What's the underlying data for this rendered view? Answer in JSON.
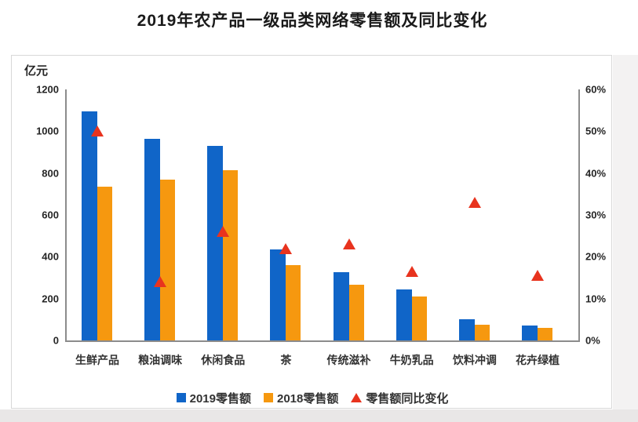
{
  "page": {
    "background_accents": {
      "right_strip": "#f3f2f2",
      "bottom_strip": "#e9e7e7",
      "panel_border": "#d8d8d8"
    }
  },
  "chart_data": {
    "type": "bar",
    "subtype": "grouped bars with right-axis scatter (triangle) markers",
    "title": "2019年农产品一级品类网络零售额及同比变化",
    "categories": [
      "生鲜产品",
      "粮油调味",
      "休闲食品",
      "茶",
      "传统滋补",
      "牛奶乳品",
      "饮料冲调",
      "花卉绿植"
    ],
    "series": [
      {
        "name": "2019零售额",
        "type": "bar",
        "axis": "left",
        "color": "#1065C8",
        "values": [
          1095,
          965,
          930,
          435,
          325,
          245,
          100,
          70
        ]
      },
      {
        "name": "2018零售额",
        "type": "bar",
        "axis": "left",
        "color": "#F6980F",
        "values": [
          735,
          770,
          815,
          360,
          265,
          210,
          75,
          60
        ]
      },
      {
        "name": "零售额同比变化",
        "type": "triangle-marker",
        "axis": "right",
        "color": "#E8331E",
        "values": [
          50,
          14,
          26,
          22,
          23,
          16.5,
          33,
          15.5
        ]
      }
    ],
    "left_axis": {
      "label": "亿元",
      "min": 0,
      "max": 1200,
      "step": 200,
      "ticks": [
        "0",
        "200",
        "400",
        "600",
        "800",
        "1000",
        "1200"
      ]
    },
    "right_axis": {
      "min": 0,
      "max": 60,
      "step": 10,
      "suffix": "%",
      "ticks": [
        "0%",
        "10%",
        "20%",
        "30%",
        "40%",
        "50%",
        "60%"
      ]
    },
    "legend_position": "bottom",
    "grid": false,
    "colors": {
      "bar_2019": "#1065C8",
      "bar_2018": "#F6980F",
      "triangle": "#E8331E",
      "axis_line": "#8C8C8C"
    }
  }
}
